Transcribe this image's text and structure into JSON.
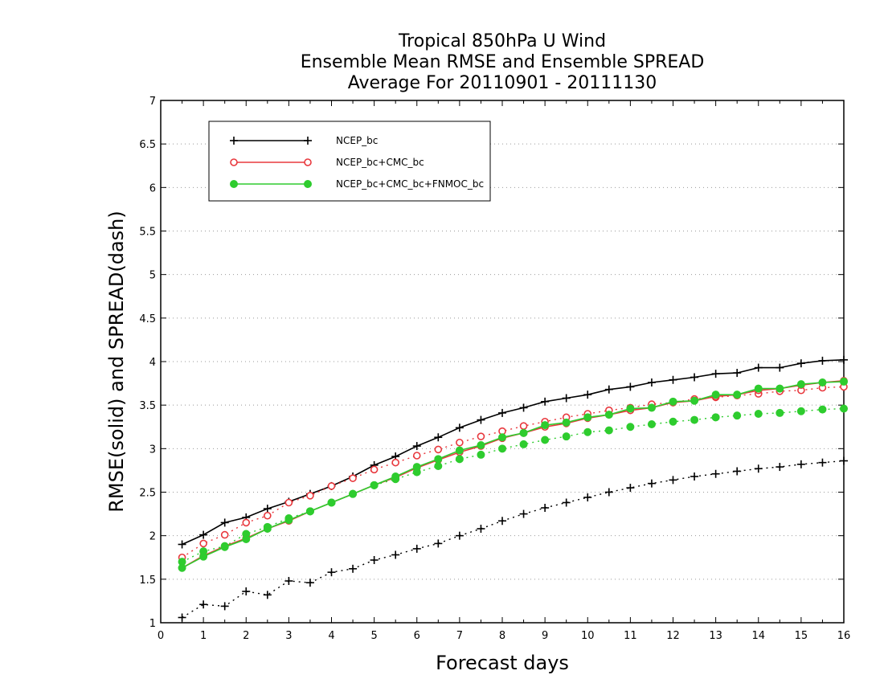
{
  "chart_data": {
    "type": "line",
    "title": [
      "Tropical 850hPa U Wind",
      "Ensemble Mean RMSE and Ensemble SPREAD",
      "Average For 20110901 - 20111130"
    ],
    "xlabel": "Forecast days",
    "ylabel": "RMSE(solid) and SPREAD(dash)",
    "xlim": [
      0,
      16
    ],
    "ylim": [
      1,
      7
    ],
    "xticks": [
      "0",
      "1",
      "2",
      "3",
      "4",
      "5",
      "6",
      "7",
      "8",
      "9",
      "10",
      "11",
      "12",
      "13",
      "14",
      "15",
      "16"
    ],
    "yticks": [
      "1",
      "1.5",
      "2",
      "2.5",
      "3",
      "3.5",
      "4",
      "4.5",
      "5",
      "5.5",
      "6",
      "6.5",
      "7"
    ],
    "grid": "horizontal dotted",
    "legend_position": "top-left",
    "x": [
      0.5,
      1,
      1.5,
      2,
      2.5,
      3,
      3.5,
      4,
      4.5,
      5,
      5.5,
      6,
      6.5,
      7,
      7.5,
      8,
      8.5,
      9,
      9.5,
      10,
      10.5,
      11,
      11.5,
      12,
      12.5,
      13,
      13.5,
      14,
      14.5,
      15,
      15.5,
      16
    ],
    "series": [
      {
        "name": "NCEP_bc",
        "color": "#000000",
        "marker": "plus",
        "rmse": [
          1.9,
          2.01,
          2.15,
          2.21,
          2.31,
          2.39,
          2.48,
          2.57,
          2.68,
          2.81,
          2.91,
          3.03,
          3.13,
          3.24,
          3.33,
          3.41,
          3.47,
          3.54,
          3.58,
          3.62,
          3.68,
          3.71,
          3.76,
          3.79,
          3.82,
          3.86,
          3.87,
          3.93,
          3.93,
          3.98,
          4.01,
          4.02
        ],
        "spread": [
          1.06,
          1.21,
          1.19,
          1.36,
          1.32,
          1.48,
          1.46,
          1.58,
          1.62,
          1.72,
          1.78,
          1.85,
          1.91,
          2.0,
          2.08,
          2.17,
          2.25,
          2.32,
          2.38,
          2.44,
          2.5,
          2.55,
          2.6,
          2.64,
          2.68,
          2.71,
          2.74,
          2.77,
          2.79,
          2.82,
          2.84,
          2.86
        ]
      },
      {
        "name": "NCEP_bc+CMC_bc",
        "color": "#e8383d",
        "marker": "open-circle",
        "rmse": [
          1.63,
          1.77,
          1.88,
          1.97,
          2.08,
          2.17,
          2.28,
          2.38,
          2.48,
          2.58,
          2.67,
          2.78,
          2.87,
          2.96,
          3.03,
          3.12,
          3.18,
          3.25,
          3.29,
          3.35,
          3.39,
          3.44,
          3.47,
          3.53,
          3.55,
          3.6,
          3.62,
          3.67,
          3.69,
          3.73,
          3.76,
          3.78
        ],
        "spread": [
          1.75,
          1.91,
          2.01,
          2.15,
          2.23,
          2.38,
          2.46,
          2.57,
          2.66,
          2.76,
          2.84,
          2.92,
          2.99,
          3.07,
          3.14,
          3.2,
          3.26,
          3.31,
          3.36,
          3.4,
          3.44,
          3.47,
          3.51,
          3.53,
          3.57,
          3.59,
          3.61,
          3.63,
          3.66,
          3.67,
          3.7,
          3.71
        ]
      },
      {
        "name": "NCEP_bc+CMC_bc+FNMOC_bc",
        "color": "#2ecc2e",
        "marker": "filled-circle",
        "rmse": [
          1.63,
          1.76,
          1.87,
          1.96,
          2.08,
          2.18,
          2.28,
          2.38,
          2.48,
          2.58,
          2.68,
          2.79,
          2.88,
          2.98,
          3.04,
          3.13,
          3.18,
          3.27,
          3.3,
          3.36,
          3.39,
          3.46,
          3.47,
          3.54,
          3.55,
          3.62,
          3.62,
          3.69,
          3.69,
          3.74,
          3.76,
          3.77
        ],
        "spread": [
          1.7,
          1.82,
          1.88,
          2.02,
          2.1,
          2.2,
          2.28,
          2.38,
          2.48,
          2.58,
          2.65,
          2.73,
          2.8,
          2.88,
          2.93,
          3.0,
          3.05,
          3.1,
          3.14,
          3.19,
          3.21,
          3.25,
          3.28,
          3.31,
          3.33,
          3.36,
          3.38,
          3.4,
          3.41,
          3.43,
          3.45,
          3.46
        ]
      }
    ]
  }
}
